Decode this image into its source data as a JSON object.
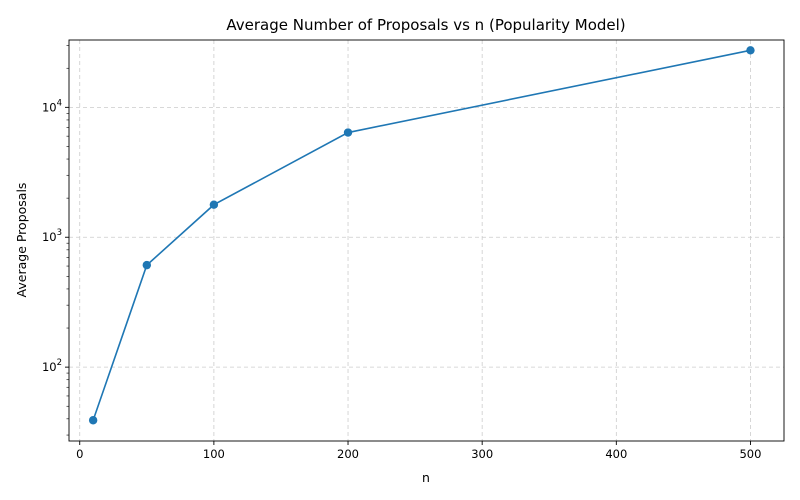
{
  "chart_data": {
    "type": "line",
    "title": "Average Number of Proposals vs n (Popularity Model)",
    "xlabel": "n",
    "ylabel": "Average Proposals",
    "x": [
      10,
      50,
      100,
      200,
      500
    ],
    "series": [
      {
        "values": [
          39,
          610,
          1780,
          6400,
          27500
        ]
      }
    ],
    "xlim": [
      -8,
      525
    ],
    "ylim": [
      27,
      33000
    ],
    "yscale": "log",
    "xticks": [
      0,
      100,
      200,
      300,
      400,
      500
    ],
    "xtick_labels": [
      "0",
      "100",
      "200",
      "300",
      "400",
      "500"
    ],
    "yticks": [
      100,
      1000,
      10000
    ],
    "ytick_labels": [
      {
        "base": "10",
        "exp": "2"
      },
      {
        "base": "10",
        "exp": "3"
      },
      {
        "base": "10",
        "exp": "4"
      }
    ],
    "grid": true,
    "marker": "circle",
    "colors": {
      "line": "#1f77b4",
      "grid": "#cccccc"
    }
  }
}
